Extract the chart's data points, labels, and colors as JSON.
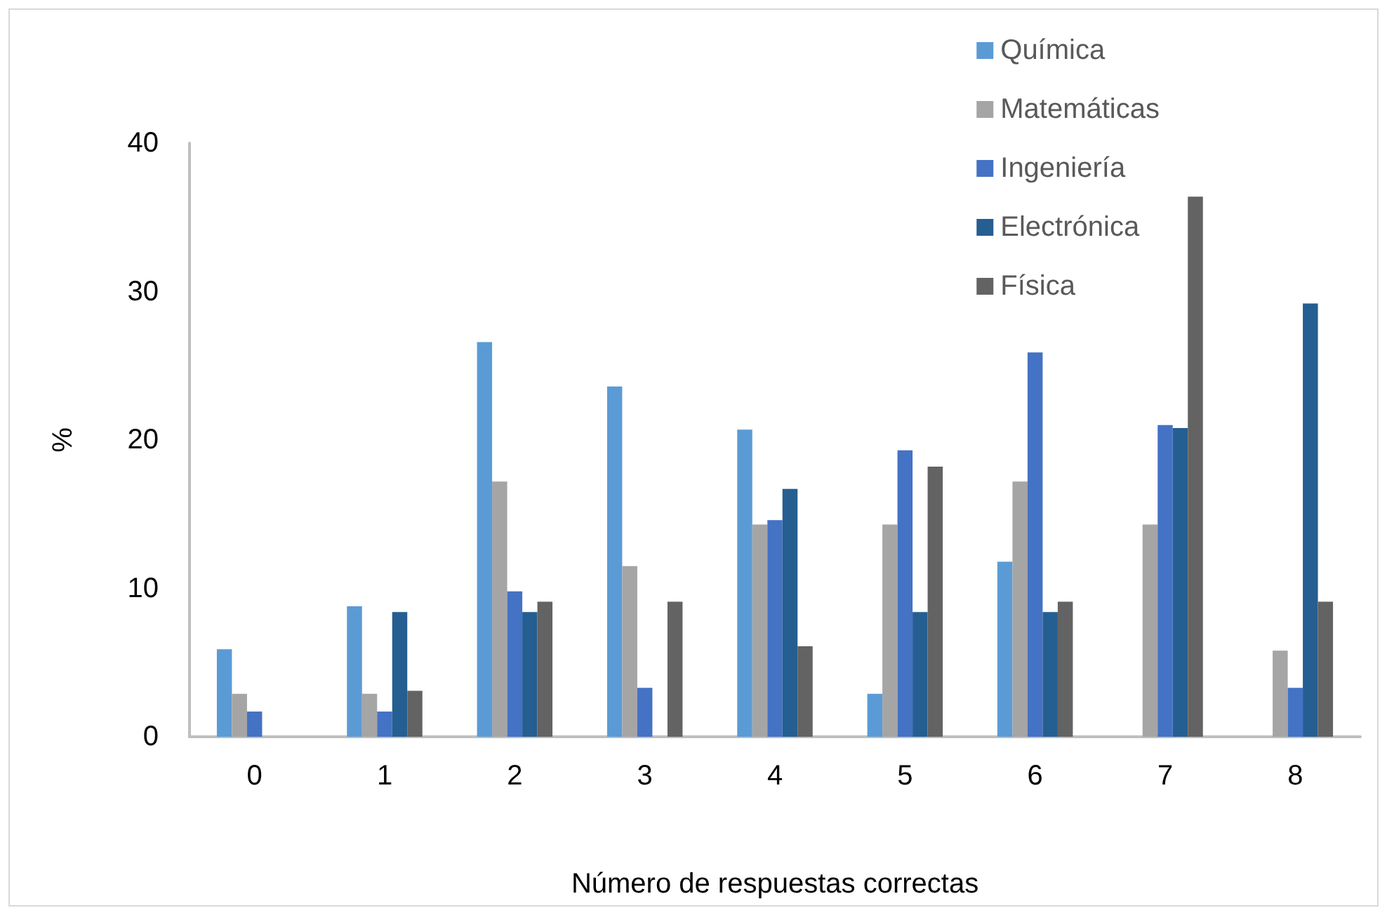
{
  "chart_data": {
    "type": "bar",
    "xlabel": "Número de respuestas correctas",
    "ylabel": "%",
    "categories": [
      "0",
      "1",
      "2",
      "3",
      "4",
      "5",
      "6",
      "7",
      "8"
    ],
    "series": [
      {
        "name": "Química",
        "color": "#5b9bd5",
        "values": [
          5.9,
          8.8,
          26.6,
          23.6,
          20.7,
          2.9,
          11.8,
          0,
          0
        ]
      },
      {
        "name": "Matemáticas",
        "color": "#a5a5a5",
        "values": [
          2.9,
          2.9,
          17.2,
          11.5,
          14.3,
          14.3,
          17.2,
          14.3,
          5.8
        ]
      },
      {
        "name": "Ingeniería",
        "color": "#4472c4",
        "values": [
          1.7,
          1.7,
          9.8,
          3.3,
          14.6,
          19.3,
          25.9,
          21.0,
          3.3
        ]
      },
      {
        "name": "Electrónica",
        "color": "#255e91",
        "values": [
          0,
          8.4,
          8.4,
          0,
          16.7,
          8.4,
          8.4,
          20.8,
          29.2
        ]
      },
      {
        "name": "Física",
        "color": "#636363",
        "values": [
          0,
          3.1,
          9.1,
          9.1,
          6.1,
          18.2,
          9.1,
          36.4,
          9.1
        ]
      }
    ],
    "ylim": [
      0,
      40
    ],
    "yticks": [
      0,
      10,
      20,
      30,
      40
    ],
    "grid": false,
    "legend": "top right"
  }
}
